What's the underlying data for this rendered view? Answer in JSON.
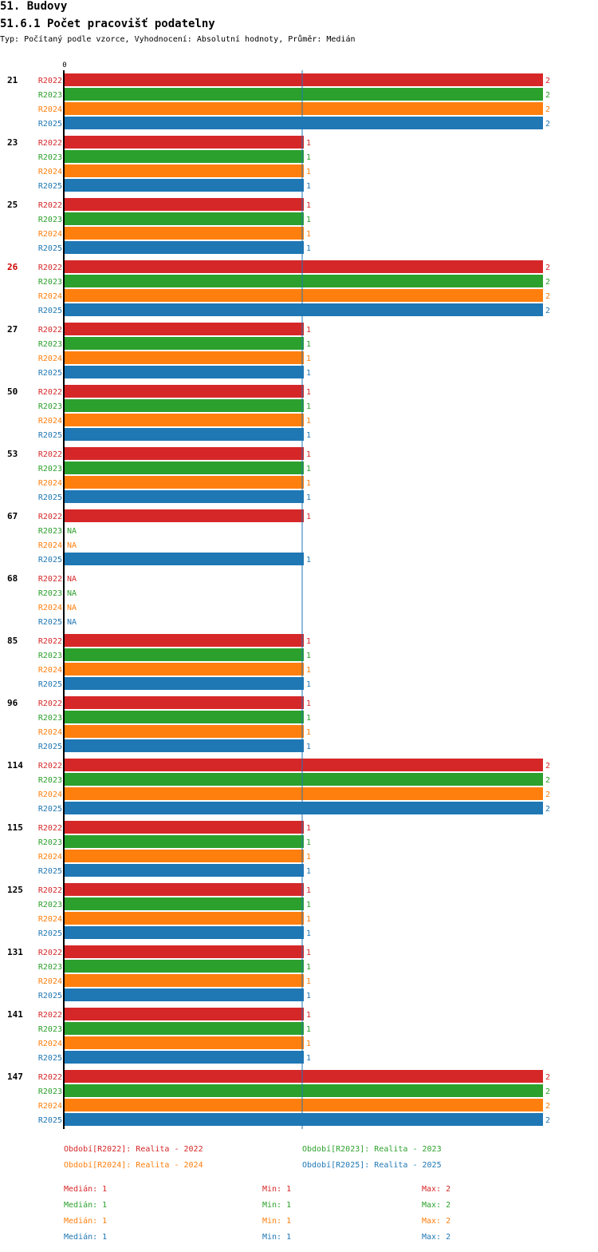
{
  "header": {
    "section": "51. Budovy",
    "title": "51.6.1 Počet pracovišť podatelny",
    "subtitle": "Typ: Počítaný podle vzorce, Vyhodnocení: Absolutní hodnoty, Průměr: Medián"
  },
  "colors": {
    "R2022": "#d62728",
    "R2023": "#2ca02c",
    "R2024": "#ff7f0e",
    "R2025": "#1f77b4"
  },
  "chart_data": {
    "type": "bar",
    "orientation": "horizontal",
    "x_tick_labels": [
      "0"
    ],
    "xlim": [
      0,
      2
    ],
    "median_line": 1,
    "highlight_category": "26",
    "highlight_color": "#cc0000",
    "series_names": [
      "R2022",
      "R2023",
      "R2024",
      "R2025"
    ],
    "na_label": "NA",
    "categories": [
      "21",
      "23",
      "25",
      "26",
      "27",
      "50",
      "53",
      "67",
      "68",
      "85",
      "96",
      "114",
      "115",
      "125",
      "131",
      "141",
      "147"
    ],
    "series": [
      {
        "name": "R2022",
        "values": [
          2,
          1,
          1,
          2,
          1,
          1,
          1,
          1,
          null,
          1,
          1,
          2,
          1,
          1,
          1,
          1,
          2
        ]
      },
      {
        "name": "R2023",
        "values": [
          2,
          1,
          1,
          2,
          1,
          1,
          1,
          null,
          null,
          1,
          1,
          2,
          1,
          1,
          1,
          1,
          2
        ]
      },
      {
        "name": "R2024",
        "values": [
          2,
          1,
          1,
          2,
          1,
          1,
          1,
          null,
          null,
          1,
          1,
          2,
          1,
          1,
          1,
          1,
          2
        ]
      },
      {
        "name": "R2025",
        "values": [
          2,
          1,
          1,
          2,
          1,
          1,
          1,
          1,
          null,
          1,
          1,
          2,
          1,
          1,
          1,
          1,
          2
        ]
      }
    ]
  },
  "legend": {
    "periods": [
      "Období[R2022]: Realita - 2022",
      "Období[R2023]: Realita - 2023",
      "Období[R2024]: Realita - 2024",
      "Období[R2025]: Realita - 2025"
    ],
    "stats": [
      {
        "median": "Medián: 1",
        "min": "Min: 1",
        "max": "Max: 2"
      },
      {
        "median": "Medián: 1",
        "min": "Min: 1",
        "max": "Max: 2"
      },
      {
        "median": "Medián: 1",
        "min": "Min: 1",
        "max": "Max: 2"
      },
      {
        "median": "Medián: 1",
        "min": "Min: 1",
        "max": "Max: 2"
      }
    ]
  }
}
